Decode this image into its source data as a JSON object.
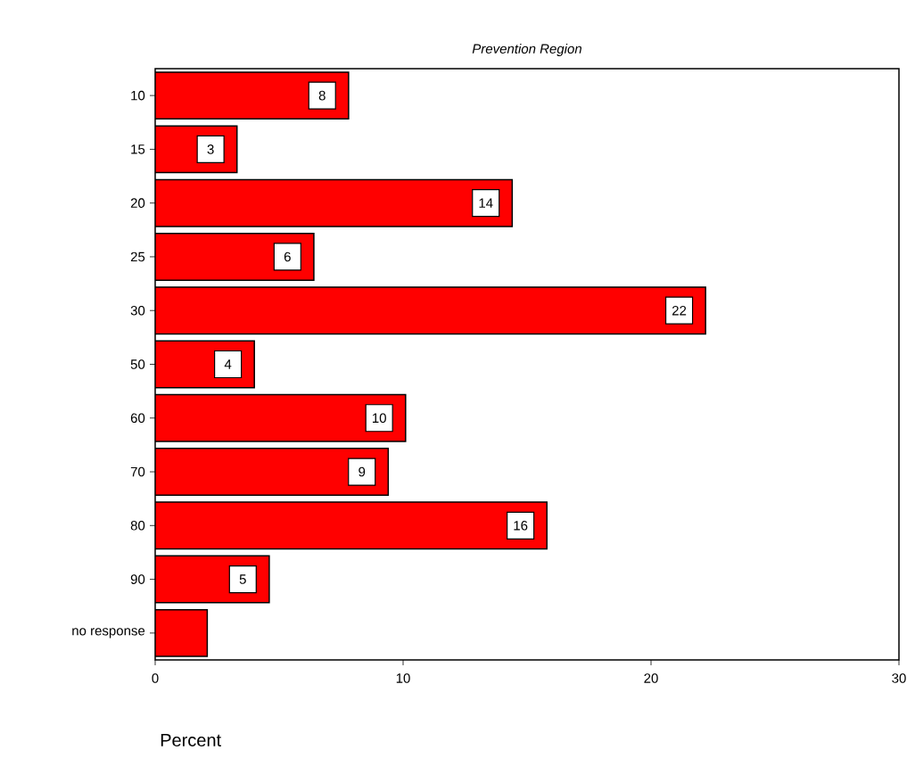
{
  "chart_data": {
    "type": "bar",
    "orientation": "horizontal",
    "title": "Prevention Region",
    "xlabel": "Percent",
    "categories": [
      "10",
      "15",
      "20",
      "25",
      "30",
      "50",
      "60",
      "70",
      "80",
      "90",
      "no response"
    ],
    "values": [
      7.8,
      3.3,
      14.4,
      6.4,
      22.2,
      4.0,
      10.1,
      9.4,
      15.8,
      4.6,
      2.1
    ],
    "value_labels": [
      "8",
      "3",
      "14",
      "6",
      "22",
      "4",
      "10",
      "9",
      "16",
      "5",
      null
    ],
    "color": "#ff0000",
    "xlim": [
      0,
      30
    ],
    "xticks": [
      0,
      10,
      20,
      30
    ]
  }
}
